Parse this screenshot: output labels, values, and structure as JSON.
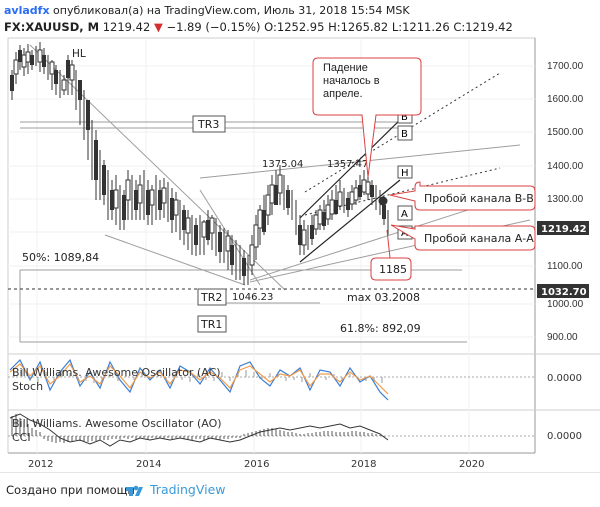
{
  "header": {
    "author": "avladfx",
    "published_text": " опубликовал(а) на TradingView.com, Июль 31, 2018 15:54 MSK",
    "symbol": "FX:XAUUSD, M",
    "last": "1219.42",
    "change": "−1.89 (−0.15%)",
    "ohlc": "O:1252.95 H:1265.82 L:1211.26 C:1219.42"
  },
  "price_axis": {
    "ticks": [
      "1700.00",
      "1600.00",
      "1500.00",
      "1400.00",
      "1300.00",
      "1200.00",
      "1100.00",
      "1000.00",
      "900.00"
    ],
    "last_badge": "1219.42",
    "level_badge": "1032.70"
  },
  "indicator_axis": {
    "ac_tick": "0.0000",
    "ao_tick": "0.0000"
  },
  "time_axis": {
    "ticks": [
      "2012",
      "2014",
      "2016",
      "2018",
      "2020"
    ]
  },
  "indicators": {
    "pane1_label": "Bill Williams. Awesome Oscillator (AC)",
    "pane1_label2": "Stoch",
    "pane2_label": "Bill Williams. Awesome Oscillator (AO)",
    "pane2_label2": "CCI"
  },
  "annotations": {
    "hl": "HL",
    "tr3": "TR3",
    "tr2": "TR2",
    "tr1": "TR1",
    "fib50": "50%: 1089,84",
    "fib618": "61.8%: 892,09",
    "low_2015": "1046.23",
    "high_2016": "1375.04",
    "high_2017": "1357.47",
    "max_2008": "max 03.2008",
    "callout_fall": "Падение началось в апреле.",
    "callout_bb": "Пробой канала В-В",
    "callout_aa": "Пробой канала А-А",
    "callout_1185": "1185",
    "tag_b1": "B",
    "tag_b2": "B",
    "tag_a1": "A",
    "tag_a2": "A",
    "tag_h": "H"
  },
  "footer": {
    "made_with": "Создано при помощи",
    "brand": "TradingView"
  }
}
